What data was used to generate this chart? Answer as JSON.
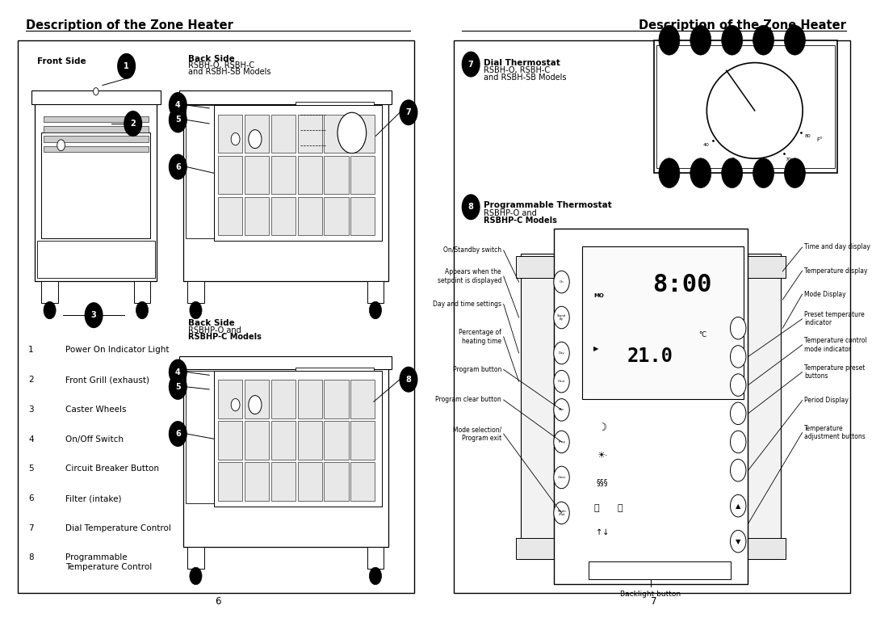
{
  "title_left": "Description of the Zone Heater",
  "title_right": "Description of the Zone Heater",
  "page_left": "6",
  "page_right": "7",
  "items_list": [
    [
      "1",
      "Power On Indicator Light"
    ],
    [
      "2",
      "Front Grill (exhaust)"
    ],
    [
      "3",
      "Caster Wheels"
    ],
    [
      "4",
      "On/Off Switch"
    ],
    [
      "5",
      "Circuit Breaker Button"
    ],
    [
      "6",
      "Filter (intake)"
    ],
    [
      "7",
      "Dial Temperature Control"
    ],
    [
      "8",
      "Programmable\nTemperature Control"
    ]
  ]
}
